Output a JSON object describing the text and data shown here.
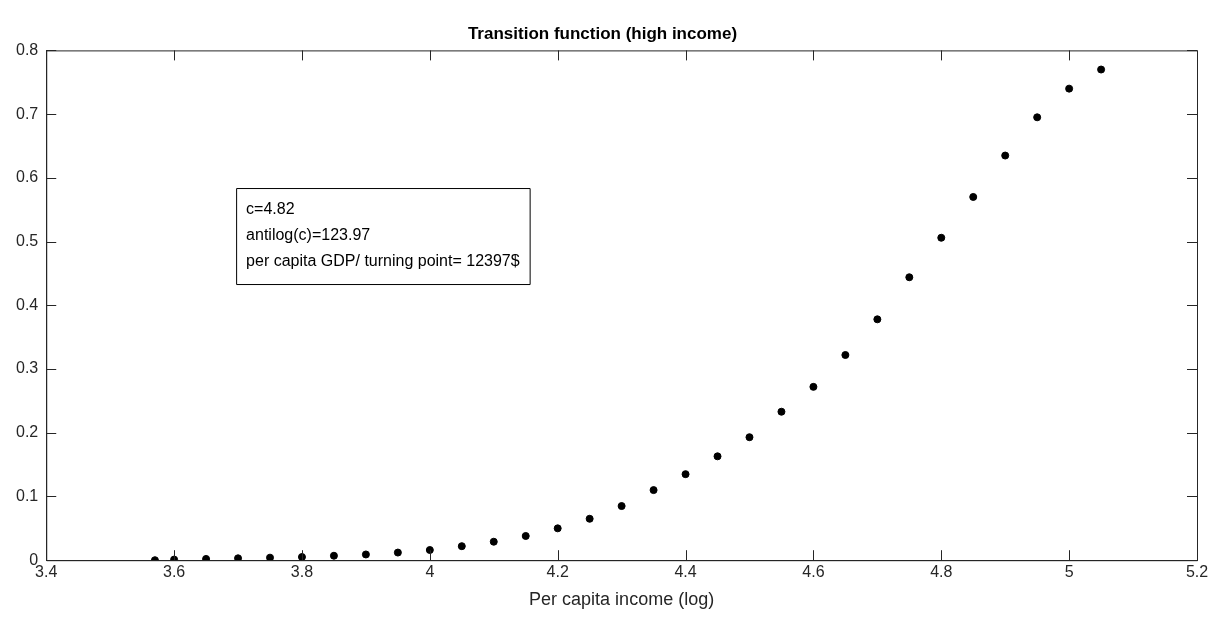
{
  "chart_data": {
    "type": "scatter",
    "title": "Transition function (high income)",
    "xlabel": "Per capita income (log)",
    "annotations": [
      "c=4.82",
      "antilog(c)=123.97",
      "per capita GDP/ turning point= 12397$"
    ],
    "series": [
      {
        "color": "#000000",
        "x": [
          3.57,
          3.6,
          3.65,
          3.7,
          3.75,
          3.8,
          3.85,
          3.9,
          3.95,
          4.0,
          4.05,
          4.1,
          4.15,
          4.2,
          4.25,
          4.3,
          4.35,
          4.4,
          4.45,
          4.5,
          4.55,
          4.6,
          4.65,
          4.7,
          4.75,
          4.8,
          4.85,
          4.9,
          4.95,
          5.0,
          5.05
        ],
        "values": [
          0,
          0.001,
          0.002,
          0.003,
          0.004,
          0.005,
          0.007,
          0.009,
          0.012,
          0.016,
          0.022,
          0.029,
          0.038,
          0.05,
          0.065,
          0.085,
          0.11,
          0.135,
          0.163,
          0.193,
          0.233,
          0.272,
          0.322,
          0.378,
          0.444,
          0.506,
          0.57,
          0.635,
          0.695,
          0.74,
          0.77
        ]
      }
    ],
    "marker": "circle",
    "grid": false,
    "legend": false,
    "xlim": [
      3.4,
      5.2
    ],
    "xticks": [
      3.4,
      3.6,
      3.8,
      4,
      4.2,
      4.4,
      4.6,
      4.8,
      5,
      5.2
    ],
    "ylim": [
      0,
      0.8
    ],
    "yticks": [
      0,
      0.1,
      0.2,
      0.3,
      0.4,
      0.5,
      0.6,
      0.7,
      0.8
    ]
  }
}
